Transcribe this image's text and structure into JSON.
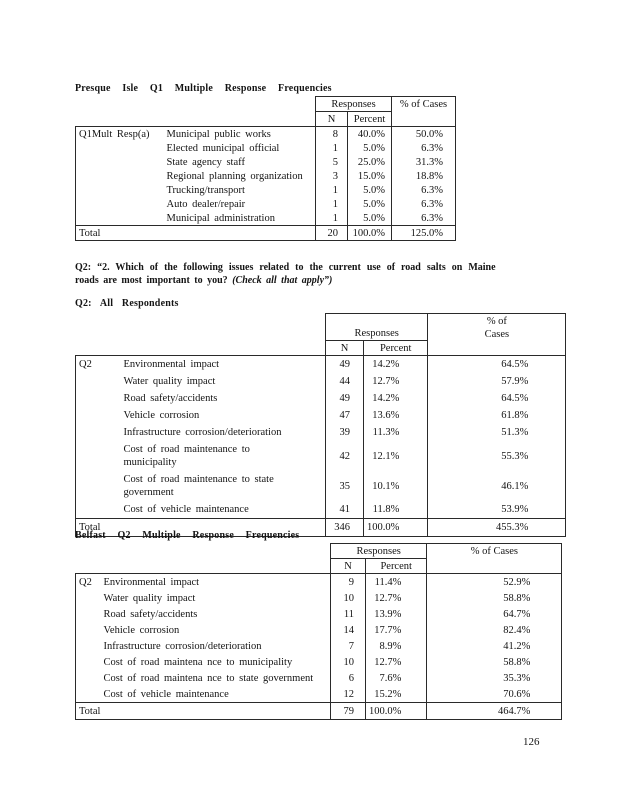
{
  "page": {
    "number": "126"
  },
  "presque": {
    "title": "Presque Isle Q1 Multiple Response Frequencies",
    "group_label": "Q1Mult Resp(a)",
    "header": {
      "responses": "Responses",
      "n": "N",
      "percent": "Percent",
      "cases": "% of Cases"
    },
    "rows": [
      {
        "label": "Municipal public works",
        "n": "8",
        "percent": "40.0%",
        "cases": "50.0%"
      },
      {
        "label": "Elected municipal official",
        "n": "1",
        "percent": "5.0%",
        "cases": "6.3%"
      },
      {
        "label": "State agency staff",
        "n": "5",
        "percent": "25.0%",
        "cases": "31.3%"
      },
      {
        "label": "Regional planning organization",
        "n": "3",
        "percent": "15.0%",
        "cases": "18.8%"
      },
      {
        "label": "Trucking/transport",
        "n": "1",
        "percent": "5.0%",
        "cases": "6.3%"
      },
      {
        "label": "Auto dealer/repair",
        "n": "1",
        "percent": "5.0%",
        "cases": "6.3%"
      },
      {
        "label": "Municipal administration",
        "n": "1",
        "percent": "5.0%",
        "cases": "6.3%"
      }
    ],
    "total": {
      "label": "Total",
      "n": "20",
      "percent": "100.0%",
      "cases": "125.0%"
    }
  },
  "question": {
    "line1": "Q2: “2. Which of the following issues related to the current use of road salts on Maine",
    "line2": "roads are most important to you?",
    "line2_note": "(Check all that apply”)"
  },
  "all_respondents": {
    "title": "Q2: All Respondents",
    "group_label": "Q2",
    "header": {
      "responses": "Responses",
      "n": "N",
      "percent": "Percent",
      "cases_line1": "% of",
      "cases_line2": "Cases"
    },
    "rows": [
      {
        "label": "Environmental impact",
        "n": "49",
        "percent": "14.2%",
        "cases": "64.5%"
      },
      {
        "label": "Water quality impact",
        "n": "44",
        "percent": "12.7%",
        "cases": "57.9%"
      },
      {
        "label": "Road safety/accidents",
        "n": "49",
        "percent": "14.2%",
        "cases": "64.5%"
      },
      {
        "label": "Vehicle corrosion",
        "n": "47",
        "percent": "13.6%",
        "cases": "61.8%"
      },
      {
        "label": "Infrastructure corrosion/deterioration",
        "n": "39",
        "percent": "11.3%",
        "cases": "51.3%"
      },
      {
        "label": "Cost of road maintenance to\nmunicipality",
        "n": "42",
        "percent": "12.1%",
        "cases": "55.3%"
      },
      {
        "label": "Cost of road maintenance to state\ngovernment",
        "n": "35",
        "percent": "10.1%",
        "cases": "46.1%"
      },
      {
        "label": "Cost of vehicle maintenance",
        "n": "41",
        "percent": "11.8%",
        "cases": "53.9%"
      }
    ],
    "total": {
      "label": "Total",
      "n": "346",
      "percent": "100.0%",
      "cases": "455.3%"
    }
  },
  "belfast": {
    "title": "Belfast Q2 Multiple Response Frequencies",
    "group_label": "Q2",
    "header": {
      "responses": "Responses",
      "n": "N",
      "percent": "Percent",
      "cases": "% of Cases"
    },
    "rows": [
      {
        "label": "Environmental impact",
        "n": "9",
        "percent": "11.4%",
        "cases": "52.9%"
      },
      {
        "label": "Water quality impact",
        "n": "10",
        "percent": "12.7%",
        "cases": "58.8%"
      },
      {
        "label": "Road safety/accidents",
        "n": "11",
        "percent": "13.9%",
        "cases": "64.7%"
      },
      {
        "label": "Vehicle corrosion",
        "n": "14",
        "percent": "17.7%",
        "cases": "82.4%"
      },
      {
        "label": "Infrastructure corrosion/deterioration",
        "n": "7",
        "percent": "8.9%",
        "cases": "41.2%"
      },
      {
        "label": "Cost of road maintena nce to municipality",
        "n": "10",
        "percent": "12.7%",
        "cases": "58.8%"
      },
      {
        "label": "Cost of road maintena nce to state government",
        "n": "6",
        "percent": "7.6%",
        "cases": "35.3%"
      },
      {
        "label": "Cost of vehicle maintenance",
        "n": "12",
        "percent": "15.2%",
        "cases": "70.6%"
      }
    ],
    "total": {
      "label": "Total",
      "n": "79",
      "percent": "100.0%",
      "cases": "464.7%"
    }
  }
}
